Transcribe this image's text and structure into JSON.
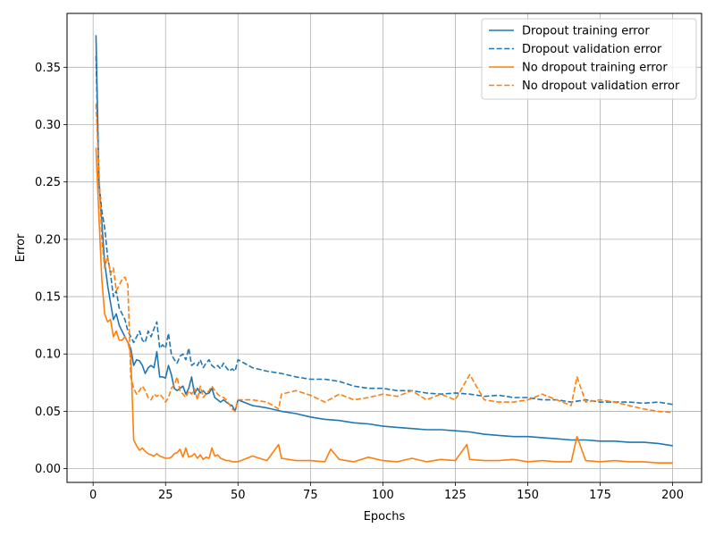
{
  "chart_data": {
    "type": "line",
    "title": "",
    "xlabel": "Epochs",
    "ylabel": "Error",
    "xlim": [
      -9,
      210
    ],
    "ylim": [
      -0.012,
      0.397
    ],
    "xticks": [
      0,
      25,
      50,
      75,
      100,
      125,
      150,
      175,
      200
    ],
    "yticks": [
      0.0,
      0.05,
      0.1,
      0.15,
      0.2,
      0.25,
      0.3,
      0.35
    ],
    "grid": true,
    "legend_position": "top-right",
    "series": [
      {
        "name": "Dropout training error",
        "color": "#1f77b4",
        "dash": "solid",
        "x": [
          1,
          2,
          3,
          4,
          5,
          6,
          7,
          8,
          9,
          10,
          11,
          12,
          13,
          14,
          15,
          16,
          17,
          18,
          19,
          20,
          21,
          22,
          23,
          24,
          25,
          26,
          27,
          28,
          29,
          30,
          31,
          32,
          33,
          34,
          35,
          36,
          37,
          38,
          39,
          40,
          41,
          42,
          43,
          44,
          45,
          46,
          47,
          48,
          49,
          50,
          55,
          60,
          65,
          70,
          75,
          80,
          85,
          90,
          95,
          100,
          105,
          110,
          115,
          120,
          125,
          130,
          135,
          140,
          145,
          150,
          155,
          160,
          165,
          170,
          175,
          180,
          185,
          190,
          195,
          200
        ],
        "y": [
          0.378,
          0.25,
          0.215,
          0.18,
          0.16,
          0.145,
          0.13,
          0.135,
          0.125,
          0.12,
          0.115,
          0.11,
          0.105,
          0.09,
          0.095,
          0.094,
          0.09,
          0.083,
          0.088,
          0.09,
          0.088,
          0.102,
          0.08,
          0.08,
          0.079,
          0.09,
          0.082,
          0.07,
          0.068,
          0.07,
          0.072,
          0.065,
          0.07,
          0.08,
          0.065,
          0.07,
          0.066,
          0.068,
          0.065,
          0.066,
          0.07,
          0.062,
          0.06,
          0.058,
          0.06,
          0.058,
          0.056,
          0.055,
          0.05,
          0.06,
          0.055,
          0.053,
          0.05,
          0.048,
          0.045,
          0.043,
          0.042,
          0.04,
          0.039,
          0.037,
          0.036,
          0.035,
          0.034,
          0.034,
          0.033,
          0.032,
          0.03,
          0.029,
          0.028,
          0.028,
          0.027,
          0.026,
          0.025,
          0.025,
          0.024,
          0.024,
          0.023,
          0.023,
          0.022,
          0.02
        ]
      },
      {
        "name": "Dropout validation error",
        "color": "#1f77b4",
        "dash": "dashed",
        "x": [
          1,
          2,
          3,
          4,
          5,
          6,
          7,
          8,
          9,
          10,
          11,
          12,
          13,
          14,
          15,
          16,
          17,
          18,
          19,
          20,
          21,
          22,
          23,
          24,
          25,
          26,
          27,
          28,
          29,
          30,
          31,
          32,
          33,
          34,
          35,
          36,
          37,
          38,
          39,
          40,
          41,
          42,
          43,
          44,
          45,
          46,
          47,
          48,
          49,
          50,
          55,
          60,
          65,
          70,
          75,
          80,
          85,
          90,
          95,
          100,
          105,
          110,
          115,
          120,
          125,
          130,
          135,
          140,
          145,
          150,
          155,
          160,
          165,
          170,
          175,
          180,
          185,
          190,
          195,
          200
        ],
        "y": [
          0.36,
          0.25,
          0.225,
          0.21,
          0.185,
          0.17,
          0.15,
          0.155,
          0.14,
          0.135,
          0.13,
          0.12,
          0.115,
          0.11,
          0.115,
          0.12,
          0.112,
          0.11,
          0.12,
          0.115,
          0.122,
          0.128,
          0.105,
          0.108,
          0.105,
          0.118,
          0.1,
          0.095,
          0.092,
          0.098,
          0.1,
          0.095,
          0.105,
          0.09,
          0.092,
          0.09,
          0.095,
          0.088,
          0.092,
          0.095,
          0.09,
          0.088,
          0.09,
          0.087,
          0.092,
          0.088,
          0.085,
          0.087,
          0.085,
          0.095,
          0.088,
          0.085,
          0.083,
          0.08,
          0.078,
          0.078,
          0.076,
          0.072,
          0.07,
          0.07,
          0.068,
          0.068,
          0.066,
          0.065,
          0.066,
          0.065,
          0.063,
          0.064,
          0.062,
          0.062,
          0.06,
          0.06,
          0.058,
          0.06,
          0.058,
          0.058,
          0.058,
          0.057,
          0.058,
          0.056
        ]
      },
      {
        "name": "No dropout training error",
        "color": "#ff7f0e",
        "dash": "solid",
        "x": [
          1,
          2,
          3,
          4,
          5,
          6,
          7,
          8,
          9,
          10,
          11,
          12,
          13,
          14,
          15,
          16,
          17,
          18,
          19,
          20,
          21,
          22,
          23,
          24,
          25,
          26,
          27,
          28,
          29,
          30,
          31,
          32,
          33,
          34,
          35,
          36,
          37,
          38,
          39,
          40,
          41,
          42,
          43,
          44,
          45,
          46,
          47,
          48,
          49,
          50,
          55,
          60,
          64,
          65,
          70,
          75,
          80,
          82,
          85,
          90,
          95,
          100,
          105,
          110,
          115,
          120,
          125,
          129,
          130,
          135,
          140,
          145,
          150,
          155,
          160,
          165,
          167,
          170,
          175,
          180,
          185,
          190,
          195,
          200
        ],
        "y": [
          0.28,
          0.22,
          0.165,
          0.135,
          0.128,
          0.13,
          0.115,
          0.12,
          0.112,
          0.112,
          0.115,
          0.11,
          0.1,
          0.025,
          0.02,
          0.016,
          0.018,
          0.015,
          0.013,
          0.012,
          0.011,
          0.013,
          0.011,
          0.01,
          0.009,
          0.009,
          0.01,
          0.013,
          0.014,
          0.017,
          0.01,
          0.018,
          0.01,
          0.011,
          0.013,
          0.009,
          0.012,
          0.008,
          0.01,
          0.009,
          0.018,
          0.011,
          0.012,
          0.009,
          0.008,
          0.007,
          0.007,
          0.006,
          0.006,
          0.006,
          0.011,
          0.007,
          0.021,
          0.009,
          0.007,
          0.007,
          0.006,
          0.017,
          0.008,
          0.006,
          0.01,
          0.007,
          0.006,
          0.009,
          0.006,
          0.008,
          0.007,
          0.021,
          0.008,
          0.007,
          0.007,
          0.008,
          0.006,
          0.007,
          0.006,
          0.006,
          0.028,
          0.007,
          0.006,
          0.007,
          0.006,
          0.006,
          0.005,
          0.005
        ]
      },
      {
        "name": "No dropout validation error",
        "color": "#ff7f0e",
        "dash": "dashed",
        "x": [
          1,
          2,
          3,
          4,
          5,
          6,
          7,
          8,
          9,
          10,
          11,
          12,
          13,
          14,
          15,
          16,
          17,
          18,
          19,
          20,
          21,
          22,
          23,
          24,
          25,
          26,
          27,
          28,
          29,
          30,
          31,
          32,
          33,
          34,
          35,
          36,
          37,
          38,
          39,
          40,
          41,
          42,
          43,
          44,
          45,
          46,
          47,
          48,
          49,
          50,
          55,
          60,
          64,
          65,
          70,
          75,
          80,
          85,
          90,
          95,
          100,
          105,
          110,
          115,
          120,
          125,
          130,
          135,
          140,
          145,
          150,
          155,
          160,
          165,
          167,
          170,
          175,
          180,
          185,
          190,
          195,
          200
        ],
        "y": [
          0.318,
          0.26,
          0.2,
          0.175,
          0.185,
          0.17,
          0.175,
          0.155,
          0.16,
          0.165,
          0.167,
          0.16,
          0.08,
          0.07,
          0.065,
          0.068,
          0.072,
          0.068,
          0.062,
          0.06,
          0.065,
          0.063,
          0.065,
          0.062,
          0.058,
          0.062,
          0.07,
          0.073,
          0.08,
          0.068,
          0.065,
          0.062,
          0.068,
          0.065,
          0.07,
          0.06,
          0.072,
          0.062,
          0.065,
          0.068,
          0.072,
          0.068,
          0.065,
          0.063,
          0.062,
          0.06,
          0.056,
          0.052,
          0.05,
          0.06,
          0.06,
          0.058,
          0.052,
          0.065,
          0.068,
          0.064,
          0.058,
          0.065,
          0.06,
          0.062,
          0.065,
          0.063,
          0.068,
          0.06,
          0.065,
          0.06,
          0.082,
          0.06,
          0.058,
          0.058,
          0.06,
          0.065,
          0.06,
          0.055,
          0.08,
          0.058,
          0.06,
          0.058,
          0.055,
          0.052,
          0.05,
          0.049
        ]
      }
    ]
  }
}
